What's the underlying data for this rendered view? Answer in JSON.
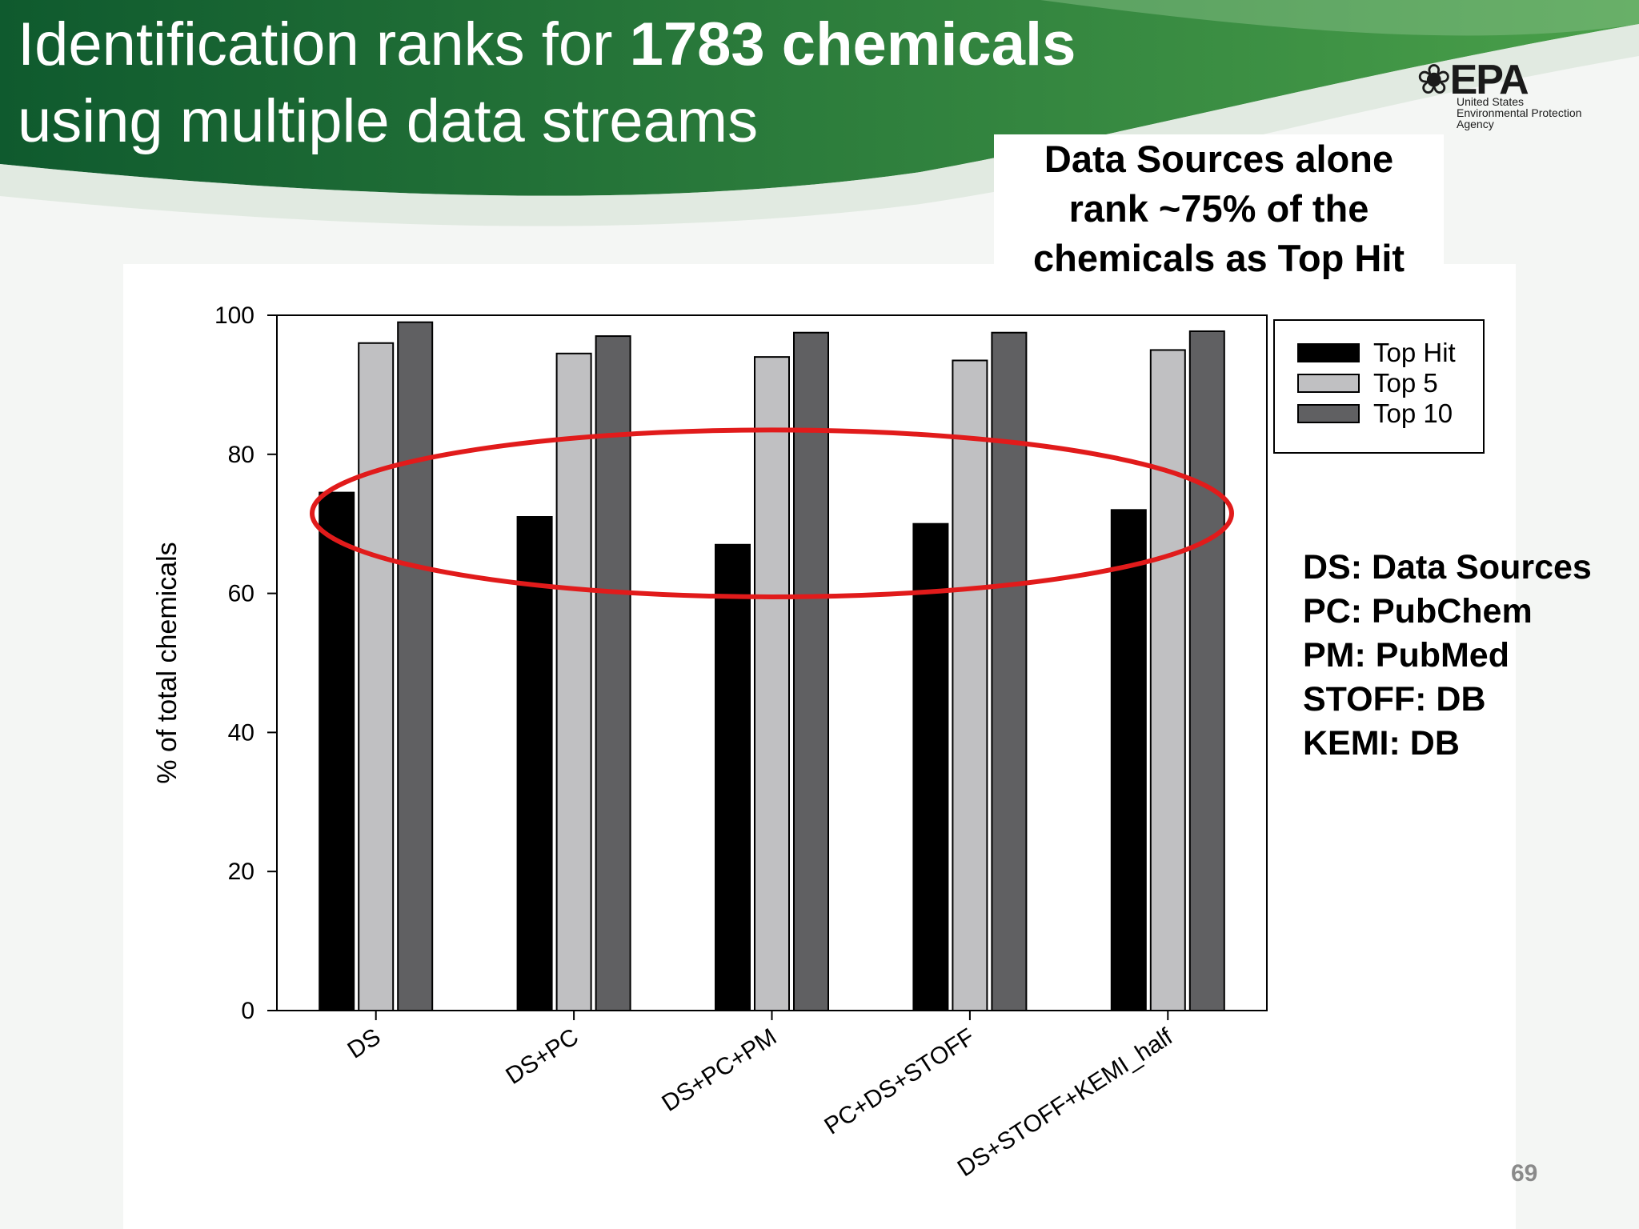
{
  "slide": {
    "title_line1_regular": "Identification ranks for ",
    "title_line1_bold": "1783 chemicals",
    "title_line2": "using multiple data streams",
    "logo_mark": "❀EPA",
    "logo_line1": "United States",
    "logo_line2": "Environmental Protection",
    "logo_line3": "Agency",
    "callout_lines": [
      "Data Sources alone",
      "rank ~75% of the",
      "chemicals as Top Hit"
    ],
    "abbreviations": [
      "DS: Data Sources",
      "PC: PubChem",
      "PM: PubMed",
      "STOFF: DB",
      "KEMI: DB"
    ],
    "page_number": "69"
  },
  "colors": {
    "banner_dark": "#0f5a2e",
    "banner_light": "#4aa04a",
    "highlight_ellipse": "#e11b1b"
  },
  "chart_data": {
    "type": "bar",
    "categories": [
      "DS",
      "DS+PC",
      "DS+PC+PM",
      "PC+DS+STOFF",
      "DS+STOFF+KEMI_half"
    ],
    "series": [
      {
        "name": "Top Hit",
        "color": "#000000",
        "values": [
          74.5,
          71.0,
          67.0,
          70.0,
          72.0
        ]
      },
      {
        "name": "Top 5",
        "color": "#c0c0c2",
        "values": [
          96.0,
          94.5,
          94.0,
          93.5,
          95.0
        ]
      },
      {
        "name": "Top 10",
        "color": "#606062",
        "values": [
          99.0,
          97.0,
          97.5,
          97.5,
          97.7
        ]
      }
    ],
    "ylabel": "% of total chemicals",
    "xlabel": "",
    "ylim": [
      0,
      100
    ],
    "yticks": [
      0,
      20,
      40,
      60,
      80,
      100
    ],
    "legend_position": "top-right outside plot",
    "annotation": {
      "shape": "ellipse",
      "color": "red",
      "y_range": [
        59.5,
        83.5
      ],
      "covers": "Top Hit bars of all categories"
    }
  }
}
